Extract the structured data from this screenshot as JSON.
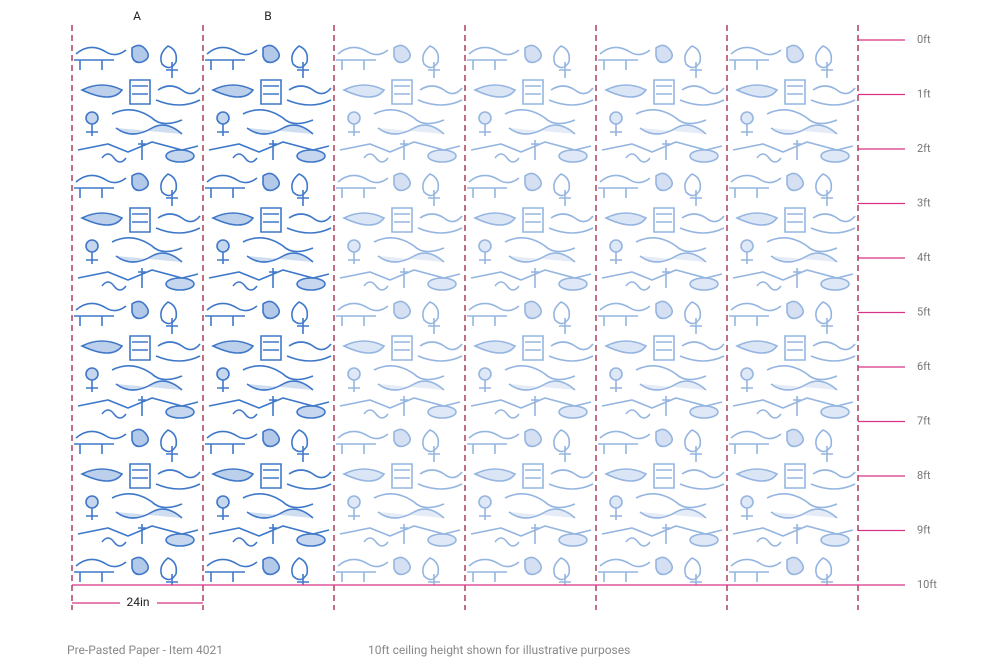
{
  "panels": [
    {
      "label": "A"
    },
    {
      "label": "B"
    }
  ],
  "height_marks": [
    "0ft",
    "1ft",
    "2ft",
    "3ft",
    "4ft",
    "5ft",
    "6ft",
    "7ft",
    "8ft",
    "9ft",
    "10ft"
  ],
  "width_label": "24in",
  "footer": {
    "product": "Pre-Pasted Paper - Item 4021",
    "note": "10ft ceiling height shown for illustrative purposes"
  }
}
